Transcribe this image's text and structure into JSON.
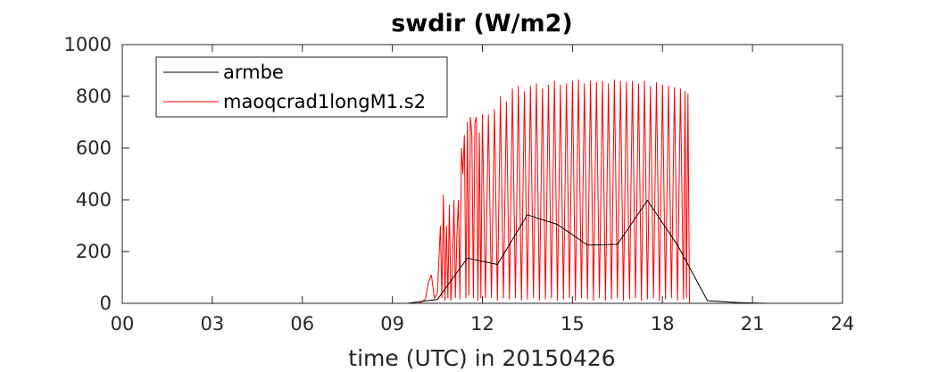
{
  "chart_data": {
    "type": "line",
    "title": "swdir  (W/m2)",
    "xlabel": "time (UTC) in 20150426",
    "ylabel": "",
    "xlim": [
      0,
      24
    ],
    "ylim": [
      0,
      1000
    ],
    "x_ticks": [
      0,
      3,
      6,
      9,
      12,
      15,
      18,
      21,
      24
    ],
    "x_tick_labels": [
      "00",
      "03",
      "06",
      "09",
      "12",
      "15",
      "18",
      "21",
      "24"
    ],
    "y_ticks": [
      0,
      200,
      400,
      600,
      800,
      1000
    ],
    "y_tick_labels": [
      "0",
      "200",
      "400",
      "600",
      "800",
      "1000"
    ],
    "grid": false,
    "legend_position": "top-left",
    "series": [
      {
        "name": "armbe",
        "color": "#000000",
        "x": [
          0,
          0.5,
          1.5,
          2.5,
          3.5,
          4.5,
          5.5,
          6.5,
          7.5,
          8.5,
          9.5,
          10.5,
          11.5,
          12.5,
          13.5,
          14.5,
          15.5,
          16.5,
          17.5,
          18.5,
          19.5,
          20.5,
          21.5,
          22.5,
          23.5,
          24
        ],
        "y": [
          0,
          0,
          0,
          0,
          0,
          0,
          0,
          0,
          0,
          0,
          0,
          15,
          175,
          150,
          342,
          305,
          225,
          228,
          398,
          225,
          10,
          3,
          0,
          0,
          0,
          0
        ]
      },
      {
        "name": "maoqcrad1longM1.s2",
        "color": "#ff0000",
        "x": [
          0,
          9.9,
          10.1,
          10.2,
          10.3,
          10.4,
          10.5,
          10.6,
          10.65,
          10.7,
          10.75,
          10.8,
          10.85,
          10.9,
          10.95,
          11.0,
          11.05,
          11.1,
          11.15,
          11.2,
          11.25,
          11.3,
          11.35,
          11.4,
          11.45,
          11.5,
          11.55,
          11.6,
          11.65,
          11.7,
          11.75,
          11.8,
          11.85,
          11.9,
          11.95,
          12.0,
          12.1,
          12.2,
          12.3,
          12.4,
          12.5,
          12.6,
          12.7,
          12.8,
          12.9,
          13.0,
          13.1,
          13.2,
          13.3,
          13.4,
          13.5,
          13.6,
          13.7,
          13.8,
          13.9,
          14.0,
          14.1,
          14.2,
          14.3,
          14.4,
          14.5,
          14.6,
          14.7,
          14.8,
          14.9,
          15.0,
          15.1,
          15.2,
          15.3,
          15.4,
          15.5,
          15.6,
          15.7,
          15.8,
          15.9,
          16.0,
          16.1,
          16.2,
          16.3,
          16.4,
          16.5,
          16.6,
          16.7,
          16.8,
          16.9,
          17.0,
          17.1,
          17.2,
          17.3,
          17.4,
          17.5,
          17.6,
          17.7,
          17.8,
          17.9,
          18.0,
          18.1,
          18.2,
          18.3,
          18.4,
          18.5,
          18.6,
          18.7,
          18.75,
          18.8,
          18.85,
          18.9,
          19.0,
          24
        ],
        "y": [
          0,
          0,
          15,
          80,
          110,
          20,
          40,
          300,
          20,
          420,
          10,
          300,
          20,
          380,
          10,
          130,
          400,
          20,
          260,
          400,
          15,
          600,
          500,
          650,
          20,
          700,
          30,
          720,
          650,
          20,
          700,
          720,
          10,
          660,
          20,
          730,
          20,
          730,
          20,
          750,
          10,
          800,
          20,
          780,
          15,
          830,
          20,
          840,
          10,
          820,
          15,
          840,
          20,
          850,
          10,
          830,
          15,
          845,
          20,
          860,
          10,
          845,
          15,
          850,
          20,
          860,
          10,
          865,
          20,
          850,
          15,
          860,
          10,
          855,
          20,
          860,
          10,
          850,
          15,
          865,
          20,
          860,
          10,
          855,
          15,
          860,
          20,
          850,
          10,
          860,
          15,
          840,
          20,
          855,
          10,
          845,
          15,
          840,
          20,
          835,
          10,
          830,
          15,
          820,
          20,
          810,
          0,
          0,
          0
        ]
      }
    ]
  }
}
